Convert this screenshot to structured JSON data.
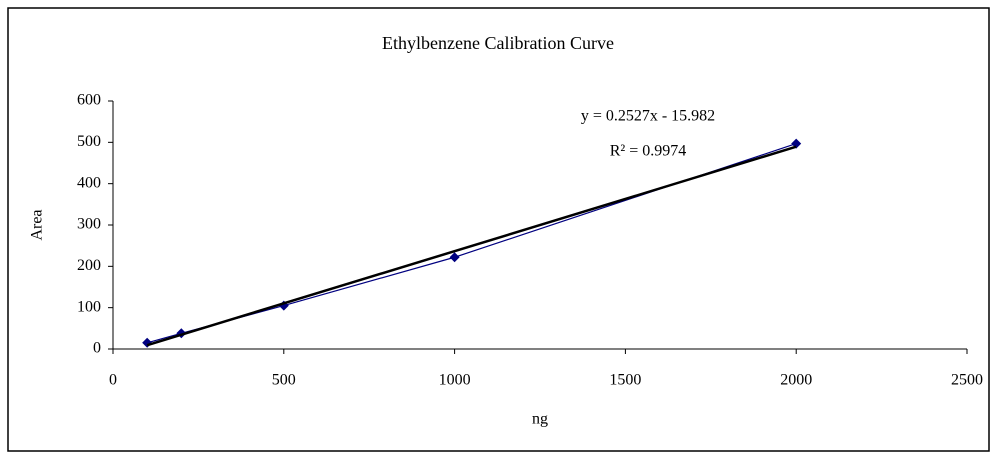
{
  "chart_data": {
    "type": "scatter",
    "title": "Ethylbenzene Calibration Curve",
    "x_label": "ng",
    "y_label": "Area",
    "series": [
      {
        "color": "#000080",
        "x": [
          100,
          200,
          500,
          1000,
          2000
        ],
        "values": [
          15,
          38,
          105,
          222,
          497
        ]
      }
    ],
    "trendline": {
      "color": "#000000",
      "x": [
        100,
        2000
      ],
      "values": [
        9.3,
        489.4
      ]
    },
    "annotations": [
      "y = 0.2527x - 15.982",
      "R² = 0.9974"
    ],
    "xlim": [
      0,
      2500
    ],
    "xticks": [
      0,
      500,
      1000,
      1500,
      2000,
      2500
    ],
    "ylim": [
      0,
      600
    ],
    "yticks": [
      0,
      100,
      200,
      300,
      400,
      500,
      600
    ],
    "grid": false
  }
}
